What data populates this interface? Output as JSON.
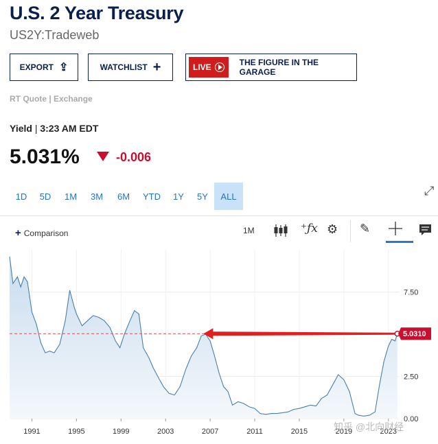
{
  "header": {
    "title": "U.S. 2 Year Treasury",
    "subtitle": "US2Y:Tradeweb"
  },
  "buttons": {
    "export": "EXPORT",
    "watchlist": "WATCHLIST",
    "live": "LIVE",
    "live_show": "THE FIGURE IN THE GARAGE"
  },
  "quote": {
    "source": "RT Quote | Exchange",
    "label": "Yield",
    "sep": "|",
    "time": "3:23 AM EDT",
    "value": "5.031%",
    "change": "-0.006"
  },
  "ranges": [
    "1D",
    "5D",
    "1M",
    "3M",
    "6M",
    "YTD",
    "1Y",
    "5Y",
    "ALL"
  ],
  "active_range": "ALL",
  "toolbar": {
    "comparison": "Comparison",
    "interval": "1M",
    "icons": [
      "candlestick-icon",
      "fx-icon",
      "gear-icon",
      "pencil-icon",
      "crosshair-icon",
      "comment-icon"
    ]
  },
  "watermark": "知乎 @北向财经",
  "chart_data": {
    "type": "area",
    "x": [
      1989.0,
      1989.3,
      1989.7,
      1990.0,
      1990.3,
      1990.6,
      1991.0,
      1991.4,
      1991.8,
      1992.2,
      1992.6,
      1993.0,
      1993.5,
      1994.0,
      1994.4,
      1994.8,
      1995.0,
      1995.5,
      1996.0,
      1996.5,
      1997.0,
      1997.5,
      1998.0,
      1998.5,
      1998.9,
      1999.3,
      1999.8,
      2000.2,
      2000.6,
      2001.0,
      2001.5,
      2001.9,
      2002.3,
      2002.8,
      2003.3,
      2003.8,
      2004.3,
      2004.8,
      2005.3,
      2005.8,
      2006.2,
      2006.6,
      2007.0,
      2007.4,
      2007.8,
      2008.2,
      2008.6,
      2009.0,
      2009.5,
      2010.0,
      2010.5,
      2011.0,
      2011.5,
      2012.0,
      2012.5,
      2013.0,
      2013.5,
      2014.0,
      2014.5,
      2015.0,
      2015.5,
      2016.0,
      2016.5,
      2017.0,
      2017.5,
      2018.0,
      2018.5,
      2019.0,
      2019.5,
      2020.0,
      2020.3,
      2020.8,
      2021.3,
      2021.8,
      2022.2,
      2022.6,
      2023.0,
      2023.3,
      2023.6,
      2023.8
    ],
    "values": [
      9.6,
      8.0,
      8.4,
      7.8,
      8.4,
      8.1,
      6.3,
      5.6,
      4.5,
      3.9,
      4.0,
      3.9,
      4.4,
      5.8,
      7.6,
      6.6,
      6.2,
      5.5,
      5.8,
      6.1,
      6.0,
      5.8,
      5.4,
      4.6,
      4.2,
      5.0,
      5.8,
      6.4,
      6.2,
      4.2,
      3.6,
      3.0,
      2.5,
      1.9,
      1.5,
      1.4,
      1.9,
      2.9,
      3.7,
      4.2,
      4.9,
      5.0,
      4.6,
      3.7,
      2.7,
      1.9,
      1.6,
      0.8,
      1.0,
      0.9,
      0.7,
      0.6,
      0.3,
      0.25,
      0.3,
      0.3,
      0.35,
      0.4,
      0.55,
      0.6,
      0.7,
      0.8,
      0.75,
      1.2,
      1.4,
      2.0,
      2.6,
      2.3,
      1.6,
      0.3,
      0.2,
      0.15,
      0.2,
      0.4,
      2.0,
      3.4,
      4.3,
      4.7,
      4.6,
      5.031
    ],
    "ylim": [
      0,
      10
    ],
    "xlim": [
      1989,
      2024
    ],
    "yticks": [
      0.0,
      2.5,
      5.0,
      7.5
    ],
    "ytick_labels": [
      "0.00",
      "2.50",
      "",
      "7.50"
    ],
    "xticks": [
      1991,
      1995,
      1999,
      2003,
      2007,
      2011,
      2015,
      2019,
      2023
    ],
    "last_value_label": "5.0310",
    "reference_level": 5.031,
    "colors": {
      "line": "#4a7fa8",
      "fill_top": "#c9dcee",
      "fill_bottom": "#f4f8fc",
      "ref": "#d9534f",
      "arrow": "#e02020",
      "badge": "#c8102e"
    }
  }
}
